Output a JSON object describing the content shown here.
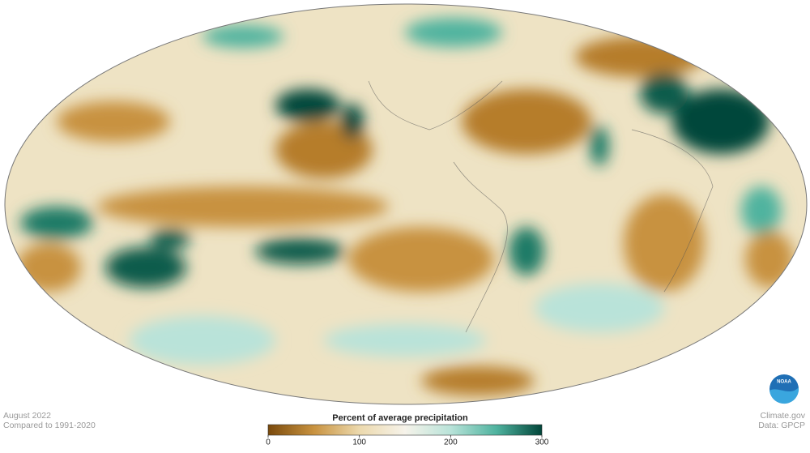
{
  "map": {
    "title": "Percent of average precipitation",
    "range": [
      0,
      300
    ],
    "ticks": [
      0,
      100,
      200,
      300
    ],
    "colors": [
      "#7a4a0c",
      "#c8923f",
      "#ecd9ad",
      "#f6f3ea",
      "#b9e3d9",
      "#4fb39f",
      "#02463a"
    ]
  },
  "footer": {
    "date": "August 2022",
    "baseline": "Compared to 1991-2020"
  },
  "credit": {
    "site": "Climate.gov",
    "data": "Data: GPCP",
    "logo": "NOAA"
  }
}
